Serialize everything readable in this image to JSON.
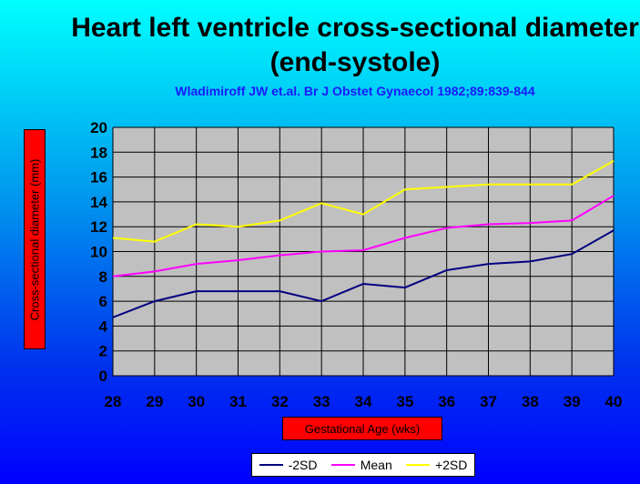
{
  "chart_data": {
    "type": "line",
    "title": "Heart left ventricle cross-sectional diameter (end-systole)",
    "subtitle": "Wladimiroff JW et.al. Br J Obstet Gynaecol 1982;89:839-844",
    "xlabel": "Gestational Age (wks)",
    "ylabel": "Cross-sectional diameter (mm)",
    "x": [
      28,
      29,
      30,
      31,
      32,
      33,
      34,
      35,
      36,
      37,
      38,
      39,
      40
    ],
    "xlim": [
      28,
      40
    ],
    "ylim": [
      0,
      20
    ],
    "yticks": [
      0,
      2,
      4,
      6,
      8,
      10,
      12,
      14,
      16,
      18,
      20
    ],
    "grid": true,
    "plot_background": "#c0c0c0",
    "legend_position": "bottom",
    "series": [
      {
        "name": "-2SD",
        "color": "#000080",
        "values": [
          4.7,
          6.0,
          6.8,
          6.8,
          6.8,
          6.0,
          7.4,
          7.1,
          8.5,
          9.0,
          9.2,
          9.8,
          11.7
        ]
      },
      {
        "name": "Mean",
        "color": "#ff00ff",
        "values": [
          8.0,
          8.4,
          9.0,
          9.3,
          9.7,
          10.0,
          10.1,
          11.1,
          11.9,
          12.2,
          12.3,
          12.5,
          14.5
        ]
      },
      {
        "name": "+2SD",
        "color": "#ffff00",
        "values": [
          11.1,
          10.8,
          12.2,
          12.0,
          12.5,
          13.9,
          13.0,
          15.0,
          15.2,
          15.4,
          15.4,
          15.4,
          17.3
        ]
      }
    ]
  }
}
